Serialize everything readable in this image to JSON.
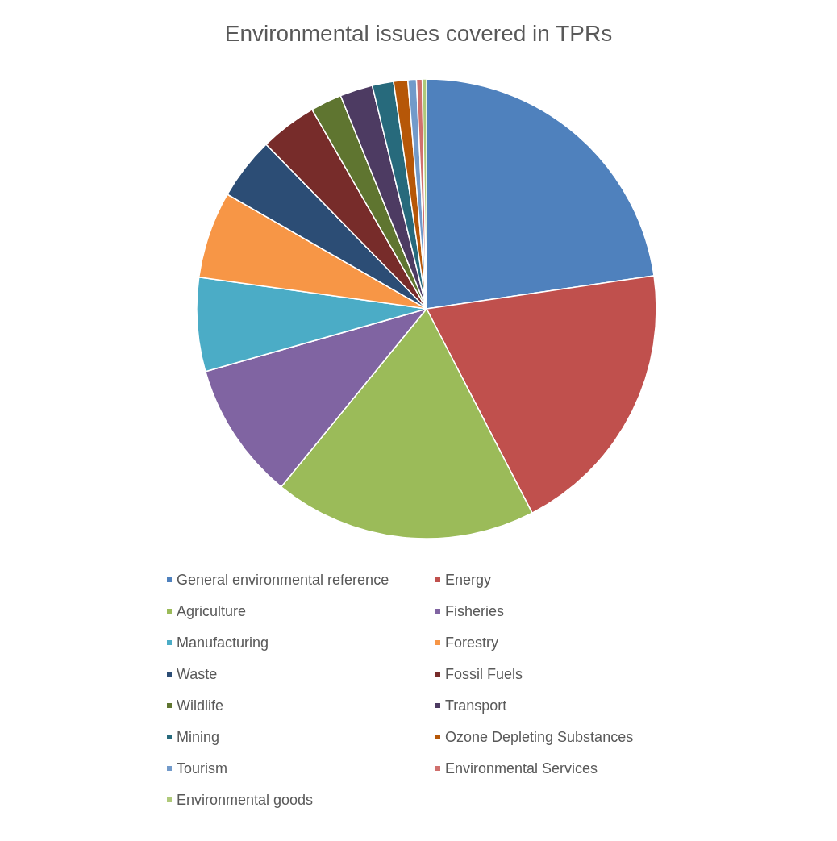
{
  "chart_data": {
    "type": "pie",
    "title": "Environmental issues covered in TPRs",
    "categories": [
      "General environmental reference",
      "Energy",
      "Agriculture",
      "Fisheries",
      "Manufacturing",
      "Forestry",
      "Waste",
      "Fossil Fuels",
      "Wildlife",
      "Transport",
      "Mining",
      "Ozone Depleting Substances",
      "Tourism",
      "Environmental Services",
      "Environmental goods"
    ],
    "values": [
      22.7,
      19.7,
      18.5,
      9.7,
      6.6,
      6.1,
      4.4,
      4.0,
      2.2,
      2.3,
      1.5,
      1.0,
      0.6,
      0.4,
      0.3
    ],
    "colors": [
      "#4f81bd",
      "#c0504d",
      "#9bbb59",
      "#8064a2",
      "#4bacc6",
      "#f79646",
      "#2c4d75",
      "#772c2a",
      "#5f7530",
      "#4d3b62",
      "#276a7c",
      "#b65708",
      "#729aca",
      "#d0706d",
      "#afc97a"
    ],
    "legend": "bottom"
  }
}
